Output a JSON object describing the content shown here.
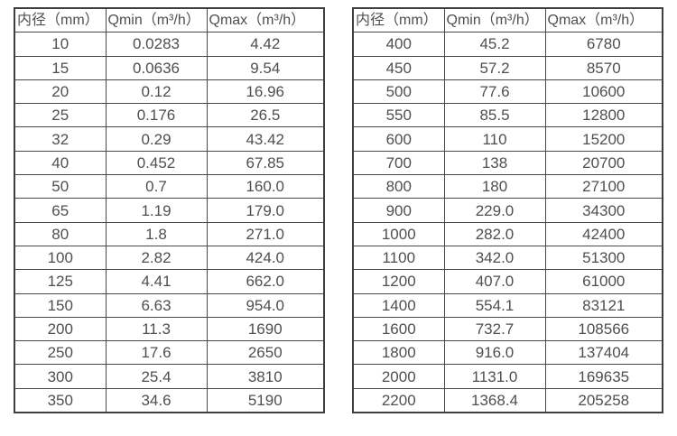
{
  "colors": {
    "background": "#ffffff",
    "text": "#4f4f4f",
    "border_outer": "#3f3f3f",
    "border_inner": "#4a4a4a"
  },
  "chart_data": [
    {
      "type": "table",
      "title": "",
      "columns": [
        "内径（mm）",
        "Qmin（m³/h）",
        "Qmax（m³/h）"
      ],
      "rows": [
        [
          "10",
          "0.0283",
          "4.42"
        ],
        [
          "15",
          "0.0636",
          "9.54"
        ],
        [
          "20",
          "0.12",
          "16.96"
        ],
        [
          "25",
          "0.176",
          "26.5"
        ],
        [
          "32",
          "0.29",
          "43.42"
        ],
        [
          "40",
          "0.452",
          "67.85"
        ],
        [
          "50",
          "0.7",
          "160.0"
        ],
        [
          "65",
          "1.19",
          "179.0"
        ],
        [
          "80",
          "1.8",
          "271.0"
        ],
        [
          "100",
          "2.82",
          "424.0"
        ],
        [
          "125",
          "4.41",
          "662.0"
        ],
        [
          "150",
          "6.63",
          "954.0"
        ],
        [
          "200",
          "11.3",
          "1690"
        ],
        [
          "250",
          "17.6",
          "2650"
        ],
        [
          "300",
          "25.4",
          "3810"
        ],
        [
          "350",
          "34.6",
          "5190"
        ]
      ]
    },
    {
      "type": "table",
      "title": "",
      "columns": [
        "内径（mm）",
        "Qmin（m³/h）",
        "Qmax（m³/h）"
      ],
      "rows": [
        [
          "400",
          "45.2",
          "6780"
        ],
        [
          "450",
          "57.2",
          "8570"
        ],
        [
          "500",
          "77.6",
          "10600"
        ],
        [
          "550",
          "85.5",
          "12800"
        ],
        [
          "600",
          "110",
          "15200"
        ],
        [
          "700",
          "138",
          "20700"
        ],
        [
          "800",
          "180",
          "27100"
        ],
        [
          "900",
          "229.0",
          "34300"
        ],
        [
          "1000",
          "282.0",
          "42400"
        ],
        [
          "1100",
          "342.0",
          "51300"
        ],
        [
          "1200",
          "407.0",
          "61000"
        ],
        [
          "1400",
          "554.1",
          "83121"
        ],
        [
          "1600",
          "732.7",
          "108566"
        ],
        [
          "1800",
          "916.0",
          "137404"
        ],
        [
          "2000",
          "1131.0",
          "169635"
        ],
        [
          "2200",
          "1368.4",
          "205258"
        ]
      ]
    }
  ]
}
